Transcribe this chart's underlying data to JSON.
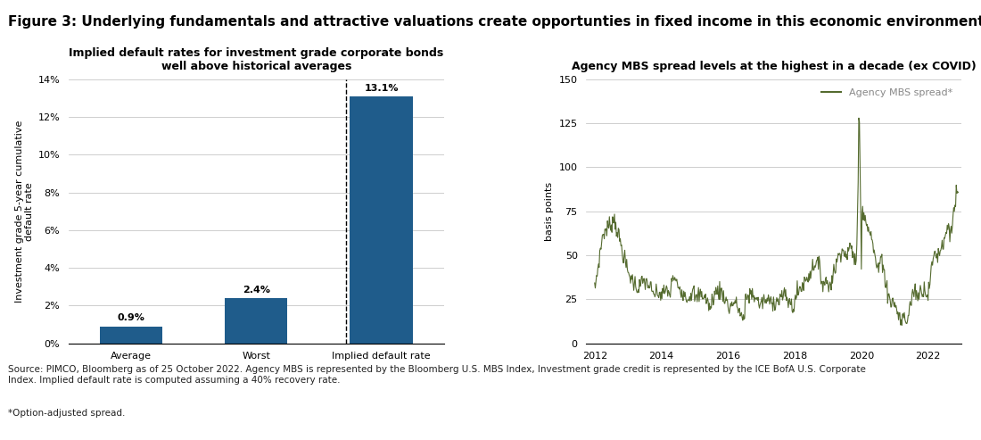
{
  "title": "Figure 3: Underlying fundamentals and attractive valuations create opportunties in fixed income in this economic environment",
  "bar_chart": {
    "title": "Implied default rates for investment grade corporate bonds\nwell above historical averages",
    "categories": [
      "Average",
      "Worst",
      "Implied default rate"
    ],
    "values": [
      0.9,
      2.4,
      13.1
    ],
    "bar_colors": [
      "#1F5C8B",
      "#1F5C8B",
      "#1F5C8B"
    ],
    "bar_labels": [
      "0.9%",
      "2.4%",
      "13.1%"
    ],
    "ylabel": "Investment grade 5-year cumulative\ndefault rate",
    "ylim": [
      0,
      14
    ],
    "yticks": [
      0,
      2,
      4,
      6,
      8,
      10,
      12,
      14
    ]
  },
  "line_chart": {
    "title": "Agency MBS spread levels at the highest in a decade (ex COVID)",
    "ylabel": "basis points",
    "legend_label": "Agency MBS spread*",
    "legend_color": "#888888",
    "line_color": "#556B2F",
    "ylim": [
      0,
      150
    ],
    "yticks": [
      0,
      25,
      50,
      75,
      100,
      125,
      150
    ],
    "xticks": [
      2012,
      2014,
      2016,
      2018,
      2020,
      2022
    ],
    "xlim_start": 2011.75,
    "xlim_end": 2023.0
  },
  "source_text": "Source: PIMCO, Bloomberg as of 25 October 2022. Agency MBS is represented by the Bloomberg U.S. MBS Index, Investment grade credit is represented by the ICE BofA U.S. Corporate\nIndex. Implied default rate is computed assuming a 40% recovery rate.",
  "footnote": "*Option-adjusted spread.",
  "background_color": "#FFFFFF",
  "title_fontsize": 11,
  "subtitle_fontsize": 9,
  "label_fontsize": 8,
  "tick_fontsize": 8,
  "source_fontsize": 7.5
}
